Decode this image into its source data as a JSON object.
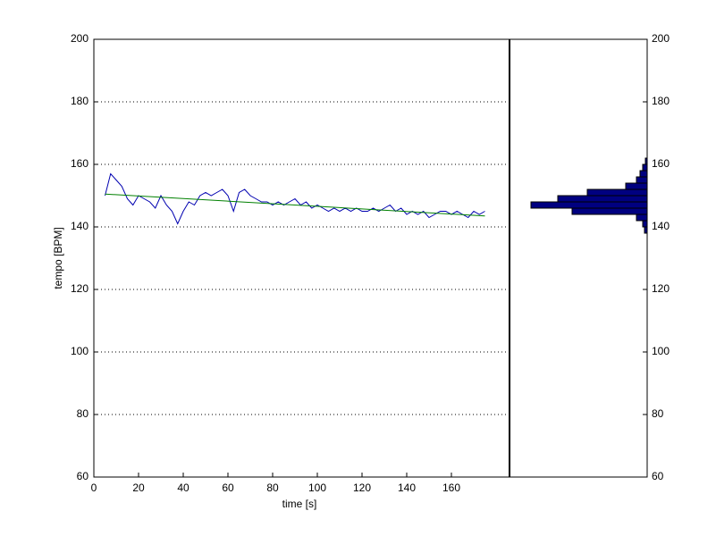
{
  "chart_data": [
    {
      "type": "line",
      "xlabel": "time [s]",
      "ylabel": "tempo [BPM]",
      "xlim": [
        0,
        186
      ],
      "xticks": [
        0,
        20,
        40,
        60,
        80,
        100,
        120,
        140,
        160
      ],
      "ylim": [
        60,
        200
      ],
      "yticks": [
        60,
        80,
        100,
        120,
        140,
        160,
        180,
        200
      ],
      "grid": "y",
      "series": [
        {
          "color": "#0000b0",
          "x": [
            5,
            7.5,
            10,
            12.5,
            15,
            17.5,
            20,
            22.5,
            25,
            27.5,
            30,
            32.5,
            35,
            37.5,
            40,
            42.5,
            45,
            47.5,
            50,
            52.5,
            55,
            57.5,
            60,
            62.5,
            65,
            67.5,
            70,
            72.5,
            75,
            77.5,
            80,
            82.5,
            85,
            87.5,
            90,
            92.5,
            95,
            97.5,
            100,
            102.5,
            105,
            107.5,
            110,
            112.5,
            115,
            117.5,
            120,
            122.5,
            125,
            127.5,
            130,
            132.5,
            135,
            137.5,
            140,
            142.5,
            145,
            147.5,
            150,
            152.5,
            155,
            157.5,
            160,
            162.5,
            165,
            167.5,
            170,
            172.5,
            175
          ],
          "values": [
            150,
            157,
            155,
            153,
            149,
            147,
            150,
            149,
            148,
            146,
            150,
            147,
            145,
            141,
            145,
            148,
            147,
            150,
            151,
            150,
            151,
            152,
            150,
            145,
            151,
            152,
            150,
            149,
            148,
            148,
            147,
            148,
            147,
            148,
            149,
            147,
            148,
            146,
            147,
            146,
            145,
            146,
            145,
            146,
            145,
            146,
            145,
            145,
            146,
            145,
            146,
            147,
            145,
            146,
            144,
            145,
            144,
            145,
            143,
            144,
            145,
            145,
            144,
            145,
            144,
            143,
            145,
            144,
            145
          ]
        },
        {
          "color": "#008000",
          "x": [
            5,
            175
          ],
          "values": [
            150.5,
            143.5
          ]
        }
      ]
    },
    {
      "type": "histogram",
      "orientation": "horizontal",
      "xdir": "reverse",
      "xlim": [
        0,
        154
      ],
      "color": "#000080",
      "ylim": [
        60,
        200
      ],
      "yticks": [
        60,
        80,
        100,
        120,
        140,
        160,
        180,
        200
      ],
      "bins": [
        138,
        140,
        142,
        144,
        146,
        148,
        150,
        152,
        154,
        156,
        158,
        160,
        162
      ],
      "counts": [
        3,
        5,
        12,
        84,
        130,
        100,
        67,
        24,
        12,
        8,
        5,
        2
      ]
    }
  ]
}
